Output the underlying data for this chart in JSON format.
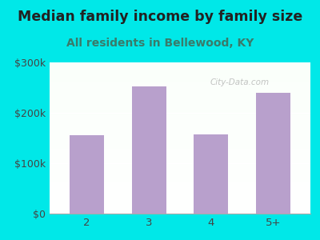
{
  "categories": [
    "2",
    "3",
    "4",
    "5+"
  ],
  "values": [
    155000,
    252000,
    157000,
    240000
  ],
  "bar_color": "#b8a0cc",
  "title": "Median family income by family size",
  "subtitle": "All residents in Bellewood, KY",
  "bg_color": "#00e8e8",
  "title_color": "#222222",
  "subtitle_color": "#3a7a6a",
  "tick_color": "#444444",
  "ylim": [
    0,
    300000
  ],
  "yticks": [
    0,
    100000,
    200000,
    300000
  ],
  "ytick_labels": [
    "$0",
    "$100k",
    "$200k",
    "$300k"
  ],
  "title_fontsize": 12.5,
  "subtitle_fontsize": 10,
  "watermark": "City-Data.com"
}
